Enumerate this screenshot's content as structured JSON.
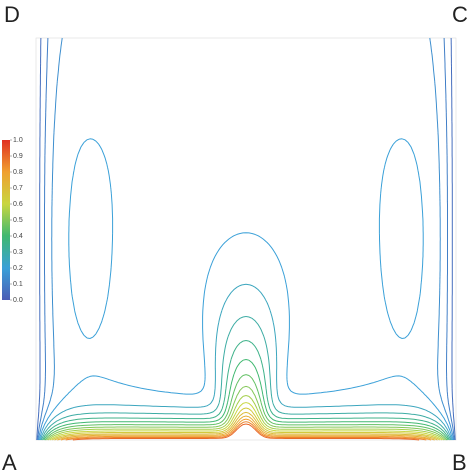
{
  "chart_data": {
    "type": "contour",
    "corner_labels": [
      "A",
      "B",
      "C",
      "D"
    ],
    "clim": [
      0,
      1
    ],
    "cticks": [
      {
        "value": 0,
        "label": "0.0"
      },
      {
        "value": 0.1,
        "label": "0.1"
      },
      {
        "value": 0.2,
        "label": "0.2"
      },
      {
        "value": 0.3,
        "label": "0.3"
      },
      {
        "value": 0.4,
        "label": "0.4"
      },
      {
        "value": 0.5,
        "label": "0.5"
      },
      {
        "value": 0.6,
        "label": "0.6"
      },
      {
        "value": 0.7,
        "label": "0.7"
      },
      {
        "value": 0.8,
        "label": "0.8"
      },
      {
        "value": 0.9,
        "label": "0.9"
      },
      {
        "value": 1,
        "label": "1.0"
      }
    ],
    "colormap": [
      "#4a5db5",
      "#3aa0d8",
      "#40b870",
      "#c8d640",
      "#f0a030",
      "#e03020"
    ],
    "levels": [
      0.05,
      0.1,
      0.15,
      0.2,
      0.25,
      0.3,
      0.35,
      0.4,
      0.45,
      0.5,
      0.55,
      0.6,
      0.65,
      0.7,
      0.75,
      0.8,
      0.85,
      0.9
    ]
  }
}
